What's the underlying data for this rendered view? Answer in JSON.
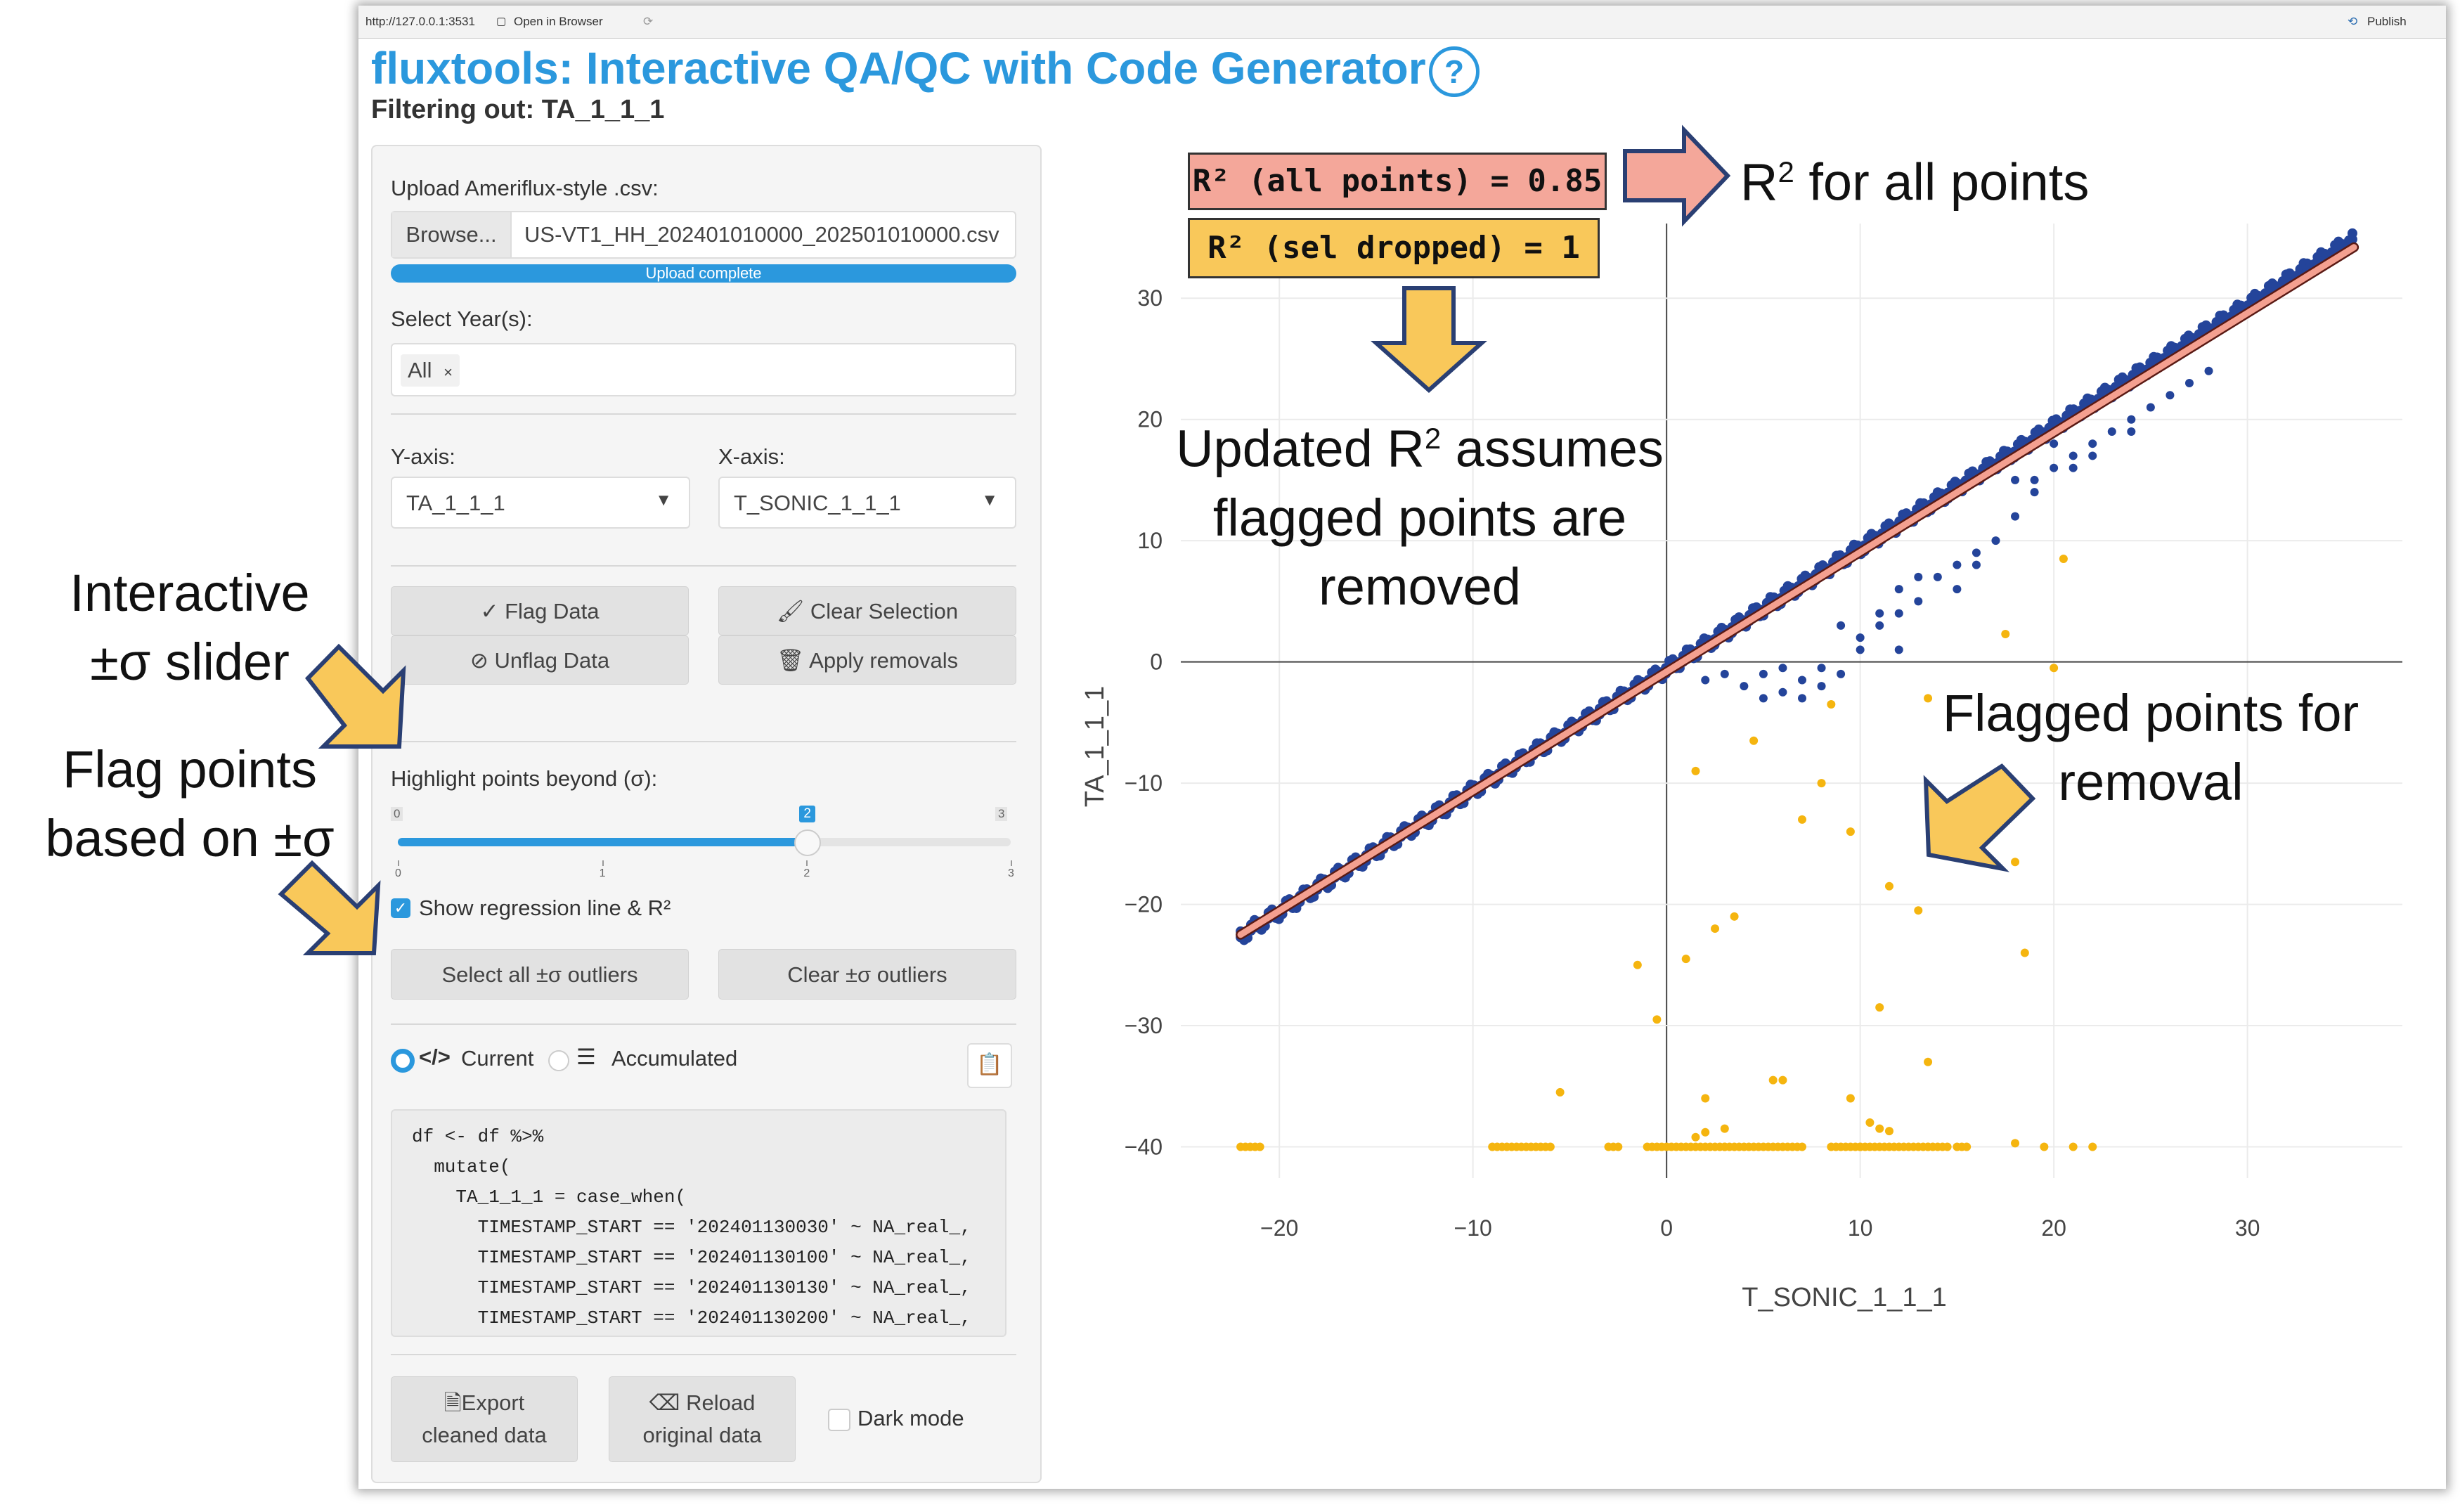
{
  "topbar": {
    "url": "http://127.0.0.1:3531",
    "open_browser": "Open in Browser",
    "publish": "Publish"
  },
  "header": {
    "title": "fluxtools: Interactive QA/QC with Code Generator",
    "subtitle": "Filtering out: TA_1_1_1"
  },
  "upload": {
    "label": "Upload Ameriflux-style .csv:",
    "browse": "Browse...",
    "filename": "US-VT1_HH_202401010000_202501010000.csv",
    "progress_text": "Upload complete",
    "progress": 1.0
  },
  "years": {
    "label": "Select Year(s):",
    "selected": "All",
    "remove": "×"
  },
  "yaxis": {
    "label": "Y-axis:",
    "value": "TA_1_1_1"
  },
  "xaxis": {
    "label": "X-axis:",
    "value": "T_SONIC_1_1_1"
  },
  "buttons": {
    "flag": "Flag Data",
    "clear_sel": "Clear Selection",
    "unflag": "Unflag Data",
    "apply": "Apply removals",
    "select_outliers": "Select all ±σ outliers",
    "clear_outliers": "Clear ±σ outliers",
    "export_1": "Export",
    "export_2": "cleaned data",
    "reload_1": "Reload",
    "reload_2": "original data"
  },
  "slider": {
    "label": "Highlight points beyond (σ):",
    "min": 0,
    "max": 3,
    "value": 2,
    "min_label": "0",
    "max_label": "3",
    "value_label": "2",
    "ticks": [
      "0",
      "1",
      "2",
      "3"
    ]
  },
  "regression_toggle": {
    "label": "Show regression line & R²",
    "checked": true
  },
  "code_mode": {
    "current": "Current",
    "accumulated": "Accumulated",
    "selected": "Current"
  },
  "code_lines": [
    "df <- df %>%",
    "  mutate(",
    "    TA_1_1_1 = case_when(",
    "      TIMESTAMP_START == '202401130030' ~ NA_real_,",
    "      TIMESTAMP_START == '202401130100' ~ NA_real_,",
    "      TIMESTAMP_START == '202401130130' ~ NA_real_,",
    "      TIMESTAMP_START == '202401130200' ~ NA_real_,"
  ],
  "dark_mode": {
    "label": "Dark mode",
    "checked": false
  },
  "r2": {
    "all_points": "R² (all points) = 0.85",
    "sel_dropped": "R² (sel dropped) = 1"
  },
  "annotations": {
    "r2_all_a": "R",
    "r2_all_sup": "2",
    "r2_all_b": " for all points",
    "updated_a": "Updated R",
    "updated_sup": "2",
    "updated_b": " assumes",
    "updated_line2": "flagged points are",
    "updated_line3": "removed",
    "flagged_line1": "Flagged points for",
    "flagged_line2": "removal",
    "slider_line1": "Interactive",
    "slider_line2": "±σ slider",
    "flag_line1": "Flag points",
    "flag_line2": "based on ±σ"
  },
  "colors": {
    "accent": "#2b98dd",
    "main_points": "#24449a",
    "flagged_points": "#f5b50f",
    "fit_line": "#f4a090",
    "r2_all_box": "#f4a79a",
    "r2_sel_box": "#f9c85a",
    "arrow_fill": "#f9c85a"
  },
  "chart_data": {
    "type": "scatter",
    "xlabel": "T_SONIC_1_1_1",
    "ylabel": "TA_1_1_1",
    "xlim": [
      -24,
      38
    ],
    "ylim": [
      -42,
      35
    ],
    "xticks": [
      -20,
      -10,
      0,
      10,
      20,
      30
    ],
    "yticks": [
      30,
      20,
      10,
      0,
      -10,
      -20,
      -30,
      -40
    ],
    "tick_minus": "−",
    "grid": true,
    "regression_line": {
      "x": [
        -22,
        35.5
      ],
      "y": [
        -22.5,
        34.2
      ]
    },
    "series": [
      {
        "role": "main",
        "trend_x_range": [
          -22,
          35.5
        ],
        "trend_slope": 1.0,
        "trend_intercept": -0.6,
        "scattered": [
          [
            2,
            -1.5
          ],
          [
            3,
            -1
          ],
          [
            4,
            -2
          ],
          [
            5,
            -1
          ],
          [
            6,
            -0.5
          ],
          [
            7,
            -1.5
          ],
          [
            8,
            -2
          ],
          [
            9,
            -1
          ],
          [
            6,
            -2.5
          ],
          [
            5,
            -3
          ],
          [
            7,
            -3
          ],
          [
            8,
            -0.5
          ],
          [
            10,
            2
          ],
          [
            11,
            3
          ],
          [
            12,
            4
          ],
          [
            13,
            5
          ],
          [
            14,
            7
          ],
          [
            15,
            8
          ],
          [
            16,
            9
          ],
          [
            17,
            10
          ],
          [
            18,
            12
          ],
          [
            19,
            14
          ],
          [
            20,
            16
          ],
          [
            21,
            17
          ],
          [
            22,
            18
          ],
          [
            23,
            19
          ],
          [
            24,
            20
          ],
          [
            25,
            21
          ],
          [
            26,
            22
          ],
          [
            27,
            23
          ],
          [
            28,
            24
          ],
          [
            18,
            15
          ],
          [
            19,
            15
          ],
          [
            22,
            17
          ],
          [
            24,
            19
          ],
          [
            12,
            6
          ],
          [
            13,
            7
          ],
          [
            10,
            1
          ],
          [
            11,
            4
          ],
          [
            12,
            1
          ],
          [
            9,
            3
          ],
          [
            15,
            6
          ],
          [
            16,
            8
          ],
          [
            20,
            18
          ],
          [
            21,
            16
          ]
        ]
      },
      {
        "role": "flagged",
        "points": [
          [
            20.5,
            8.5
          ],
          [
            17.5,
            2.3
          ],
          [
            20,
            -0.5
          ],
          [
            8.5,
            -3.5
          ],
          [
            13.5,
            -3
          ],
          [
            4.5,
            -6.5
          ],
          [
            1.5,
            -9
          ],
          [
            8,
            -10
          ],
          [
            7,
            -13
          ],
          [
            9.5,
            -14
          ],
          [
            18,
            -16.5
          ],
          [
            11.5,
            -18.5
          ],
          [
            13,
            -20.5
          ],
          [
            3.5,
            -21
          ],
          [
            2.5,
            -22
          ],
          [
            18.5,
            -24
          ],
          [
            1,
            -24.5
          ],
          [
            -1.5,
            -25
          ],
          [
            11,
            -28.5
          ],
          [
            -0.5,
            -29.5
          ],
          [
            13.5,
            -33
          ],
          [
            5.5,
            -34.5
          ],
          [
            6,
            -34.5
          ],
          [
            9.5,
            -36
          ],
          [
            2,
            -36
          ],
          [
            -5.5,
            -35.5
          ],
          [
            10.5,
            -38
          ],
          [
            11,
            -38.5
          ],
          [
            11.5,
            -38.7
          ],
          [
            3,
            -38.5
          ],
          [
            2,
            -38.8
          ],
          [
            1.5,
            -39.2
          ],
          [
            18,
            -39.7
          ],
          [
            19.5,
            -40
          ],
          [
            22,
            -40
          ],
          [
            21,
            -40
          ]
        ],
        "baseline_y": -40,
        "baseline_ranges": [
          [
            -22,
            -21
          ],
          [
            -9,
            -6
          ],
          [
            -3,
            -2.5
          ],
          [
            -1,
            3
          ],
          [
            3,
            7
          ],
          [
            8.5,
            10
          ],
          [
            10,
            13.5
          ],
          [
            13.5,
            14.5
          ],
          [
            15,
            15.5
          ]
        ]
      }
    ]
  }
}
